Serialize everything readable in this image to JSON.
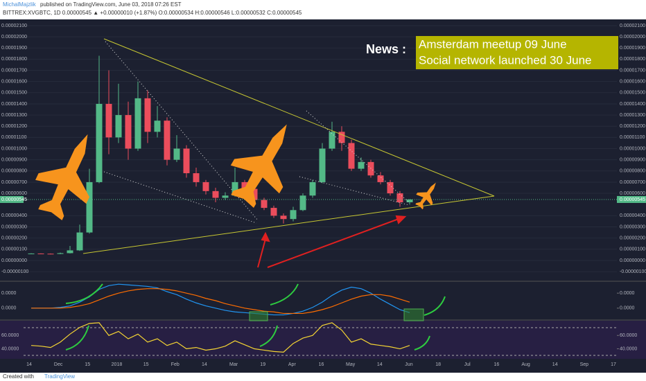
{
  "header": {
    "author": "MichalMajzlik",
    "published": "published on TradingView.com, June 03, 2018 07:26 EST",
    "symbol_line": "BITTREX:XVGBTC, 1D 0.00000545 ▲ +0.00000010 (+1.87%) O:0.00000534 H:0.00000546 L:0.00000532 C:0.00000545"
  },
  "news": {
    "label": "News :",
    "lines": [
      "Amsterdam meetup 09 June",
      "Social network launched 30 June"
    ]
  },
  "footer": {
    "created": "Created with",
    "brand": "TradingView"
  },
  "chart_data": [
    {
      "type": "candlestick",
      "price_tag": "0.00000545",
      "categories": [
        null,
        null,
        null,
        null,
        null,
        null,
        null,
        null,
        null,
        null,
        null,
        null,
        null,
        null,
        null,
        null,
        null,
        null,
        null,
        null,
        null,
        null,
        null,
        null,
        null,
        null,
        null,
        null,
        null,
        null,
        null,
        null,
        null,
        null,
        null,
        null,
        null,
        null,
        null,
        null
      ],
      "open": [
        6e-07,
        6.2e-07,
        6e-07,
        5.8e-07,
        6.5e-07,
        9e-07,
        2.5e-06,
        7e-06,
        1.4e-05,
        1.1e-05,
        1.3e-05,
        1e-05,
        1.45e-05,
        1.15e-05,
        1.25e-05,
        9e-06,
        1e-05,
        7.8e-06,
        7e-06,
        6.2e-06,
        5.6e-06,
        5.8e-06,
        7e-06,
        6.4e-06,
        5.4e-06,
        4.7e-06,
        4e-06,
        3.7e-06,
        4.5e-06,
        5.8e-06,
        7e-06,
        1e-05,
        1.15e-05,
        1.05e-05,
        8.2e-06,
        8.8e-06,
        7.6e-06,
        7e-06,
        6e-06,
        5.2e-06
      ],
      "high": [
        6.4e-07,
        6.3e-07,
        6.2e-07,
        7e-07,
        1.3e-06,
        3.2e-06,
        8.2e-06,
        1.83e-05,
        1.7e-05,
        1.58e-05,
        1.42e-05,
        1.6e-05,
        1.52e-05,
        1.38e-05,
        1.28e-05,
        1.12e-05,
        1.03e-05,
        8.3e-06,
        7.2e-06,
        6.5e-06,
        6.1e-06,
        8.3e-06,
        7.2e-06,
        6.6e-06,
        5.6e-06,
        4.9e-06,
        4.2e-06,
        4.8e-06,
        6e-06,
        7.2e-06,
        1.05e-05,
        1.24e-05,
        1.2e-05,
        1.08e-05,
        9.2e-06,
        9e-06,
        7.9e-06,
        7.2e-06,
        6.2e-06,
        5.48e-06
      ],
      "low": [
        5.7e-07,
        5.6e-07,
        5.5e-07,
        5.6e-07,
        6.2e-07,
        8.5e-07,
        2.4e-06,
        6.9e-06,
        9.5e-06,
        1.05e-05,
        9e-06,
        9.8e-06,
        1.05e-05,
        1.1e-05,
        8.5e-06,
        8.8e-06,
        7.4e-06,
        6.6e-06,
        5.9e-06,
        5.2e-06,
        5.4e-06,
        5.7e-06,
        6.1e-06,
        5.2e-06,
        4.5e-06,
        3.8e-06,
        3.3e-06,
        3.5e-06,
        4.4e-06,
        5.6e-06,
        6.9e-06,
        9.8e-06,
        9.8e-06,
        8e-06,
        8e-06,
        7.4e-06,
        6.8e-06,
        5.8e-06,
        4.8e-06,
        5e-06
      ],
      "close": [
        6.2e-07,
        6e-07,
        5.8e-07,
        6.5e-07,
        9e-07,
        2.5e-06,
        7e-06,
        1.4e-05,
        1.1e-05,
        1.3e-05,
        1e-05,
        1.45e-05,
        1.15e-05,
        1.25e-05,
        9e-06,
        1e-05,
        7.8e-06,
        7e-06,
        6.2e-06,
        5.6e-06,
        5.8e-06,
        7e-06,
        6.4e-06,
        5.4e-06,
        4.7e-06,
        4e-06,
        3.7e-06,
        4.5e-06,
        5.8e-06,
        7e-06,
        1e-05,
        1.15e-05,
        1.05e-05,
        8.2e-06,
        8.8e-06,
        7.6e-06,
        7e-06,
        6e-06,
        5.2e-06,
        5.45e-06
      ],
      "up_color": "#53b987",
      "down_color": "#eb4d5c",
      "ylim": [
        -1.8e-06,
        2.143e-05
      ],
      "yticks": [
        {
          "value": 2.1e-05,
          "label": "0.00002100"
        },
        {
          "value": 2e-05,
          "label": "0.00002000"
        },
        {
          "value": 1.9e-05,
          "label": "0.00001900"
        },
        {
          "value": 1.8e-05,
          "label": "0.00001800"
        },
        {
          "value": 1.7e-05,
          "label": "0.00001700"
        },
        {
          "value": 1.6e-05,
          "label": "0.00001600"
        },
        {
          "value": 1.5e-05,
          "label": "0.00001500"
        },
        {
          "value": 1.4e-05,
          "label": "0.00001400"
        },
        {
          "value": 1.3e-05,
          "label": "0.00001300"
        },
        {
          "value": 1.2e-05,
          "label": "0.00001200"
        },
        {
          "value": 1.1e-05,
          "label": "0.00001100"
        },
        {
          "value": 1e-05,
          "label": "0.00001000"
        },
        {
          "value": 9e-06,
          "label": "0.00000900"
        },
        {
          "value": 8e-06,
          "label": "0.00000800"
        },
        {
          "value": 7e-06,
          "label": "0.00000700"
        },
        {
          "value": 6e-06,
          "label": "0.00000600"
        },
        {
          "value": 4e-06,
          "label": "0.00000400"
        },
        {
          "value": 3e-06,
          "label": "0.00000300"
        },
        {
          "value": 2e-06,
          "label": "0.00000200"
        },
        {
          "value": 1e-06,
          "label": "0.00000100"
        },
        {
          "value": 0,
          "label": "0.00000000"
        },
        {
          "value": -1e-06,
          "label": "-0.00000100"
        }
      ],
      "xtick_labels": [
        "14",
        "Dec",
        "15",
        "2018",
        "15",
        "Feb",
        "14",
        "Mar",
        "19",
        "Apr",
        "16",
        "May",
        "14",
        "Jun",
        "18",
        "Jul",
        "16",
        "Aug",
        "14",
        "Sep",
        "17"
      ]
    },
    {
      "type": "line",
      "categories": [
        null,
        null,
        null,
        null,
        null,
        null,
        null,
        null,
        null,
        null,
        null,
        null,
        null,
        null,
        null,
        null,
        null,
        null,
        null,
        null,
        null,
        null,
        null,
        null,
        null,
        null,
        null,
        null,
        null,
        null,
        null,
        null,
        null,
        null,
        null,
        null,
        null,
        null,
        null,
        null
      ],
      "series": [
        {
          "color": "#2196f3",
          "values": [
            0,
            0,
            0,
            1e-08,
            3e-08,
            8e-08,
            1.5e-07,
            2.5e-07,
            3e-07,
            3.2e-07,
            3.1e-07,
            3e-07,
            2.9e-07,
            2.7e-07,
            2.2e-07,
            1.8e-07,
            1.2e-07,
            7e-08,
            3e-08,
            0,
            -3e-08,
            -5e-08,
            -6e-08,
            -7e-08,
            -8e-08,
            -9e-08,
            -9e-08,
            -7e-08,
            -4e-08,
            1e-08,
            8e-08,
            1.7e-07,
            2.4e-07,
            2.8e-07,
            2.6e-07,
            2e-07,
            1.2e-07,
            5e-08,
            -2e-08,
            -6e-08
          ]
        },
        {
          "color": "#ff6d00",
          "values": [
            0,
            0,
            0,
            0,
            1e-08,
            3e-08,
            6e-08,
            1.1e-07,
            1.6e-07,
            2e-07,
            2.3e-07,
            2.5e-07,
            2.6e-07,
            2.6e-07,
            2.5e-07,
            2.3e-07,
            2e-07,
            1.7e-07,
            1.3e-07,
            1e-07,
            6e-08,
            3e-08,
            0,
            -2e-08,
            -4e-08,
            -5e-08,
            -7e-08,
            -7e-08,
            -7e-08,
            -5e-08,
            -2e-08,
            2e-08,
            7e-08,
            1.2e-07,
            1.6e-07,
            1.8e-07,
            1.8e-07,
            1.6e-07,
            1.2e-07,
            8e-08
          ]
        }
      ],
      "ylim": [
        -1.4e-07,
        3.4e-07
      ],
      "yticks": [
        {
          "value": 2e-07,
          "label": "0.0000"
        },
        {
          "value": 0,
          "label": "0.0000"
        }
      ]
    },
    {
      "type": "line",
      "categories": [
        null,
        null,
        null,
        null,
        null,
        null,
        null,
        null,
        null,
        null,
        null,
        null,
        null,
        null,
        null,
        null,
        null,
        null,
        null,
        null,
        null,
        null,
        null,
        null,
        null,
        null,
        null,
        null,
        null,
        null,
        null,
        null,
        null,
        null,
        null,
        null,
        null,
        null,
        null,
        null
      ],
      "series": [
        {
          "color": "#f5d533",
          "values": [
            45,
            44,
            42,
            50,
            62,
            72,
            78,
            79,
            60,
            66,
            55,
            62,
            50,
            55,
            45,
            50,
            40,
            42,
            38,
            40,
            44,
            52,
            46,
            40,
            38,
            36,
            35,
            48,
            56,
            60,
            75,
            79,
            68,
            50,
            55,
            47,
            45,
            43,
            40,
            45
          ]
        }
      ],
      "ylim": [
        25,
        82
      ],
      "yticks": [
        {
          "value": 60,
          "label": "60.0000"
        },
        {
          "value": 40,
          "label": "40.0000"
        }
      ]
    }
  ]
}
